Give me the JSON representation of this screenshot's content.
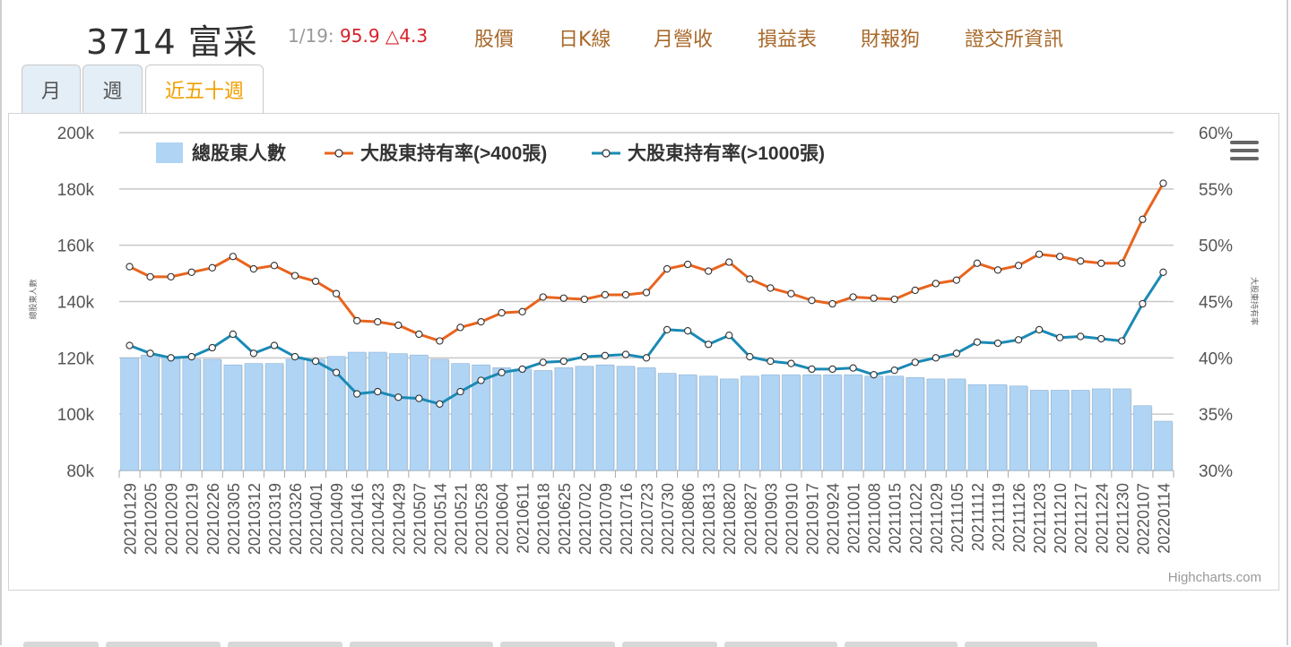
{
  "header": {
    "stock_title": "3714 富采",
    "quote_date": "1/19:",
    "quote_price": "95.9 △4.3",
    "nav": [
      "股價",
      "日K線",
      "月營收",
      "損益表",
      "財報狗",
      "證交所資訊"
    ]
  },
  "tabs": [
    "月",
    "週",
    "近五十週"
  ],
  "active_tab": "近五十週",
  "credits": "Highcharts.com",
  "colors": {
    "bar": "#b0d4f4",
    "bar_border": "#8fb3d3",
    "line400": "#e8641e",
    "line1000": "#1a8ab5",
    "nav": "#a8692a",
    "price": "#d6232b"
  },
  "chart_data": {
    "type": "bar+line",
    "left_axis": {
      "title": "總股東人數",
      "range": [
        80000,
        200000
      ],
      "tick_labels": [
        "80k",
        "100k",
        "120k",
        "140k",
        "160k",
        "180k",
        "200k"
      ]
    },
    "right_axis": {
      "title": "大股東持有率",
      "range": [
        30,
        60
      ],
      "tick_labels": [
        "30%",
        "35%",
        "40%",
        "45%",
        "50%",
        "55%",
        "60%"
      ]
    },
    "legend": {
      "placement": "top-left",
      "items": [
        "總股東人數",
        "大股東持有率(>400張)",
        "大股東持有率(>1000張)"
      ]
    },
    "categories": [
      "20210129",
      "20210205",
      "20210209",
      "20210219",
      "20210226",
      "20210305",
      "20210312",
      "20210319",
      "20210326",
      "20210401",
      "20210409",
      "20210416",
      "20210423",
      "20210429",
      "20210507",
      "20210514",
      "20210521",
      "20210528",
      "20210604",
      "20210611",
      "20210618",
      "20210625",
      "20210702",
      "20210709",
      "20210716",
      "20210723",
      "20210730",
      "20210806",
      "20210813",
      "20210820",
      "20210827",
      "20210903",
      "20210910",
      "20210917",
      "20210924",
      "20211001",
      "20211008",
      "20211015",
      "20211022",
      "20211029",
      "20211105",
      "20211112",
      "20211119",
      "20211126",
      "20211203",
      "20211210",
      "20211217",
      "20211224",
      "20211230",
      "20220107",
      "20220114"
    ],
    "series": [
      {
        "name": "總股東人數",
        "type": "bar",
        "axis": "left",
        "values": [
          120000,
          121000,
          120500,
          119500,
          119500,
          117500,
          118000,
          118000,
          119500,
          119500,
          120500,
          122000,
          122000,
          121500,
          121000,
          119500,
          118000,
          117500,
          116500,
          116000,
          115500,
          116500,
          117000,
          117500,
          117000,
          116500,
          114500,
          114000,
          113500,
          112500,
          113500,
          114000,
          114000,
          114000,
          114000,
          114000,
          113500,
          113500,
          113000,
          112500,
          112500,
          110500,
          110500,
          110000,
          108500,
          108500,
          108500,
          109000,
          109000,
          103000,
          97500
        ]
      },
      {
        "name": "大股東持有率(>400張)",
        "type": "line",
        "axis": "right",
        "values": [
          48.1,
          47.2,
          47.2,
          47.6,
          48.0,
          49.0,
          47.9,
          48.2,
          47.3,
          46.8,
          45.7,
          43.3,
          43.2,
          42.9,
          42.1,
          41.5,
          42.7,
          43.2,
          44.0,
          44.1,
          45.4,
          45.3,
          45.2,
          45.6,
          45.6,
          45.8,
          47.9,
          48.3,
          47.7,
          48.5,
          47.0,
          46.2,
          45.7,
          45.1,
          44.8,
          45.4,
          45.3,
          45.2,
          46.0,
          46.6,
          46.9,
          48.4,
          47.8,
          48.2,
          49.2,
          49.0,
          48.6,
          48.4,
          48.4,
          52.3,
          55.5
        ]
      },
      {
        "name": "大股東持有率(>1000張)",
        "type": "line",
        "axis": "right",
        "values": [
          41.1,
          40.4,
          40.0,
          40.1,
          40.9,
          42.1,
          40.4,
          41.1,
          40.1,
          39.7,
          38.7,
          36.8,
          37.0,
          36.5,
          36.4,
          35.9,
          37.0,
          38.0,
          38.7,
          39.0,
          39.6,
          39.7,
          40.1,
          40.2,
          40.3,
          40.0,
          42.5,
          42.4,
          41.2,
          42.0,
          40.1,
          39.7,
          39.5,
          39.0,
          39.0,
          39.1,
          38.5,
          38.9,
          39.6,
          40.0,
          40.4,
          41.4,
          41.3,
          41.6,
          42.5,
          41.8,
          41.9,
          41.7,
          41.5,
          44.8,
          47.6
        ]
      }
    ]
  }
}
